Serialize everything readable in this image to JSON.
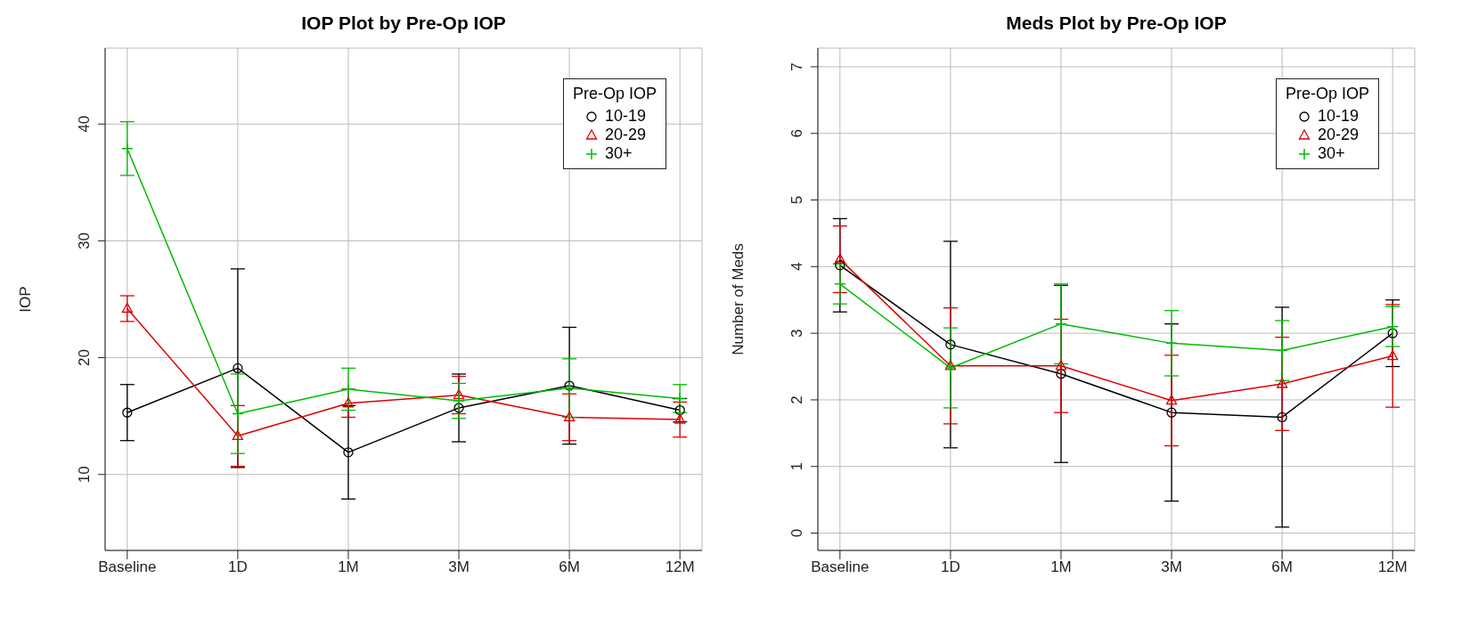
{
  "chart_data": [
    {
      "type": "line",
      "title": "IOP Plot by Pre-Op IOP",
      "ylabel": "IOP",
      "legend_title": "Pre-Op IOP",
      "categories": [
        "Baseline",
        "1D",
        "1M",
        "3M",
        "6M",
        "12M"
      ],
      "ylim": [
        3.5,
        46.5
      ],
      "yticks": [
        10,
        20,
        30,
        40
      ],
      "grid": true,
      "legend": "top right",
      "series": [
        {
          "name": "10-19",
          "color": "#000000",
          "marker": "circle",
          "values": [
            15.3,
            19.1,
            11.9,
            15.7,
            17.6,
            15.5
          ],
          "errors": [
            2.4,
            8.5,
            4.0,
            2.9,
            5.0,
            1.0
          ]
        },
        {
          "name": "20-29",
          "color": "#dd0000",
          "marker": "triangle",
          "values": [
            24.2,
            13.3,
            16.1,
            16.8,
            14.9,
            14.7
          ],
          "errors": [
            1.1,
            2.6,
            1.2,
            1.6,
            2.0,
            1.5
          ]
        },
        {
          "name": "30+",
          "color": "#00bb00",
          "marker": "cross",
          "values": [
            37.9,
            15.2,
            17.3,
            16.3,
            17.4,
            16.5
          ],
          "errors": [
            2.3,
            3.4,
            1.8,
            1.5,
            2.5,
            1.2
          ]
        }
      ]
    },
    {
      "type": "line",
      "title": "Meds Plot by Pre-Op IOP",
      "ylabel": "Number of Meds",
      "legend_title": "Pre-Op IOP",
      "categories": [
        "Baseline",
        "1D",
        "1M",
        "3M",
        "6M",
        "12M"
      ],
      "ylim": [
        -0.26,
        7.28
      ],
      "yticks": [
        0,
        1,
        2,
        3,
        4,
        5,
        6,
        7
      ],
      "grid": true,
      "legend": "top right",
      "series": [
        {
          "name": "10-19",
          "color": "#000000",
          "marker": "circle",
          "values": [
            4.02,
            2.83,
            2.39,
            1.81,
            1.74,
            3.0
          ],
          "errors": [
            0.7,
            1.55,
            1.33,
            1.33,
            1.65,
            0.5
          ]
        },
        {
          "name": "20-29",
          "color": "#dd0000",
          "marker": "triangle",
          "values": [
            4.11,
            2.51,
            2.51,
            1.99,
            2.24,
            2.66
          ],
          "errors": [
            0.5,
            0.87,
            0.7,
            0.68,
            0.7,
            0.77
          ]
        },
        {
          "name": "30+",
          "color": "#00bb00",
          "marker": "cross",
          "values": [
            3.74,
            2.48,
            3.14,
            2.85,
            2.74,
            3.1
          ],
          "errors": [
            0.3,
            0.6,
            0.6,
            0.49,
            0.45,
            0.3
          ]
        }
      ]
    }
  ]
}
